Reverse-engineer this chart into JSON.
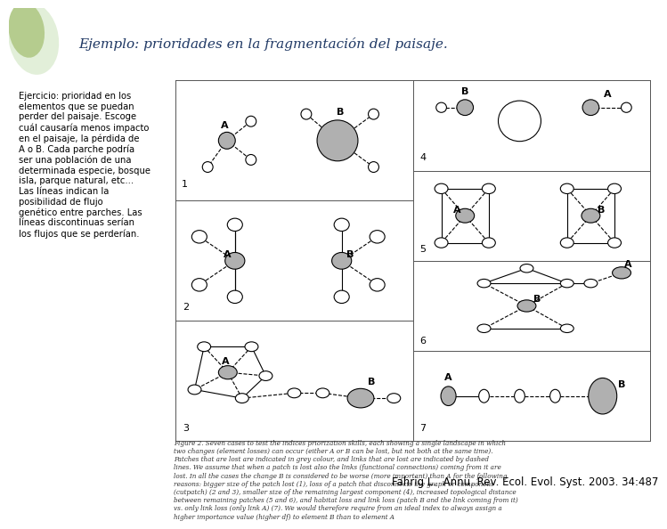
{
  "title": "Ejemplo: prioridades en la fragmentación del paisaje.",
  "left_text": "Ejercicio: prioridad en los elementos que se puedan perder del paisaje. Escoge cuál causaría menos impacto en el paisaje, la pérdida de A o B. Cada parche podría ser una población de una determinada especie, bosque isla, parque natural, etc... Las líneas indican la posibilidad de flujo genético entre parches. Las líneas discontinuas serían los flujos que se perderían.",
  "caption_italic": "Figure 2. Seven cases to test the indices priorization skills, each showing a single landscape in which two changes (element losses) can occur (either A or B can be lost, but not both at the same time). Patches that are lost are indicated in grey colour, and links that are lost are indicated by dashed lines. We assume that when a patch is lost also the links (functional connections) coming from it are lost. In all the cases the change B is considered to be worse (more important) than A for the following reasons: bigger size of the patch lost (1), loss of a patch that disconnects the graph or component (cutpatch) (2 and 3), smaller size of the remaining largest component (4), increased topological distance between remaining patches (5 and 6), and habitat loss and link loss (patch B and the link coming from it) vs. only link loss (only link A) (7). We would therefore require from an ideal index to always assign a higher importance value (higher df) to element B than to element A",
  "citation": "Fahrig L.  Annu. Rev. Ecol. Evol. Syst. 2003. 34:487",
  "bg_color": "#ffffff",
  "left_bg": "#dde8cc",
  "title_color": "#1f3864",
  "left_text_color": "#000000",
  "header_bg": "#ffffff",
  "logo_green1": "#b5cc8e",
  "logo_green2": "#e2efd9",
  "diagram_bg": "#f5f5f5",
  "gray_node": "#b0b0b0",
  "white_node": "#ffffff",
  "node_edge": "#000000"
}
